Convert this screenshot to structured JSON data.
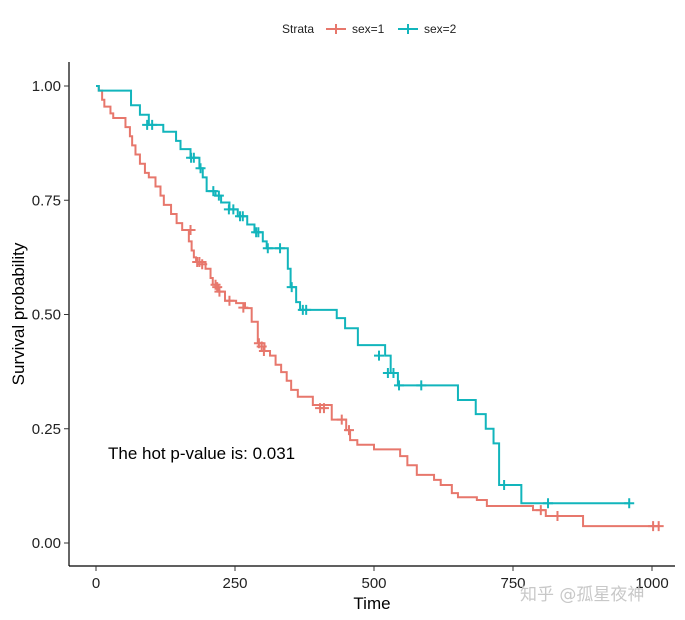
{
  "chart_data": {
    "type": "line",
    "subtype": "kaplan-meier step",
    "xlabel": "Time",
    "ylabel": "Survival probability",
    "xlim": [
      -50,
      1050
    ],
    "ylim": [
      -0.05,
      1.05
    ],
    "x_ticks": [
      "0",
      "250",
      "500",
      "750",
      "1000"
    ],
    "y_ticks": [
      "0.00",
      "0.25",
      "0.50",
      "0.75",
      "1.00"
    ],
    "grid": false,
    "legend": {
      "position": "top",
      "title": "Strata"
    },
    "annotation": "The hot p-value is: 0.031",
    "series": [
      {
        "name": "sex=1",
        "color": "#E7776C",
        "steps": [
          [
            0,
            1.0
          ],
          [
            5,
            0.99
          ],
          [
            11,
            0.97
          ],
          [
            15,
            0.955
          ],
          [
            26,
            0.94
          ],
          [
            31,
            0.93
          ],
          [
            53,
            0.91
          ],
          [
            61,
            0.89
          ],
          [
            65,
            0.87
          ],
          [
            71,
            0.85
          ],
          [
            79,
            0.83
          ],
          [
            88,
            0.81
          ],
          [
            95,
            0.8
          ],
          [
            107,
            0.78
          ],
          [
            116,
            0.76
          ],
          [
            122,
            0.74
          ],
          [
            135,
            0.72
          ],
          [
            145,
            0.7
          ],
          [
            155,
            0.685
          ],
          [
            167,
            0.66
          ],
          [
            172,
            0.64
          ],
          [
            176,
            0.625
          ],
          [
            180,
            0.615
          ],
          [
            197,
            0.6
          ],
          [
            206,
            0.58
          ],
          [
            210,
            0.565
          ],
          [
            220,
            0.55
          ],
          [
            232,
            0.53
          ],
          [
            252,
            0.525
          ],
          [
            268,
            0.514
          ],
          [
            280,
            0.484
          ],
          [
            291,
            0.437
          ],
          [
            303,
            0.42
          ],
          [
            313,
            0.41
          ],
          [
            323,
            0.39
          ],
          [
            333,
            0.374
          ],
          [
            343,
            0.355
          ],
          [
            351,
            0.335
          ],
          [
            363,
            0.32
          ],
          [
            390,
            0.302
          ],
          [
            424,
            0.27
          ],
          [
            450,
            0.247
          ],
          [
            457,
            0.225
          ],
          [
            470,
            0.215
          ],
          [
            500,
            0.205
          ],
          [
            547,
            0.19
          ],
          [
            560,
            0.17
          ],
          [
            577,
            0.149
          ],
          [
            608,
            0.138
          ],
          [
            620,
            0.127
          ],
          [
            640,
            0.109
          ],
          [
            651,
            0.1
          ],
          [
            685,
            0.094
          ],
          [
            703,
            0.081
          ],
          [
            786,
            0.072
          ],
          [
            809,
            0.059
          ],
          [
            876,
            0.037
          ],
          [
            1014,
            0.037
          ]
        ],
        "censored": [
          [
            170,
            0.685
          ],
          [
            182,
            0.615
          ],
          [
            186,
            0.615
          ],
          [
            191,
            0.61
          ],
          [
            215,
            0.565
          ],
          [
            218,
            0.56
          ],
          [
            222,
            0.55
          ],
          [
            240,
            0.53
          ],
          [
            265,
            0.515
          ],
          [
            293,
            0.437
          ],
          [
            298,
            0.43
          ],
          [
            302,
            0.42
          ],
          [
            403,
            0.295
          ],
          [
            410,
            0.295
          ],
          [
            442,
            0.27
          ],
          [
            455,
            0.247
          ],
          [
            800,
            0.072
          ],
          [
            830,
            0.059
          ],
          [
            1002,
            0.037
          ],
          [
            1012,
            0.037
          ]
        ]
      },
      {
        "name": "sex=2",
        "color": "#12B5BC",
        "steps": [
          [
            0,
            1.0
          ],
          [
            5,
            0.99
          ],
          [
            63,
            0.958
          ],
          [
            79,
            0.937
          ],
          [
            95,
            0.915
          ],
          [
            121,
            0.9
          ],
          [
            144,
            0.88
          ],
          [
            152,
            0.862
          ],
          [
            170,
            0.843
          ],
          [
            186,
            0.82
          ],
          [
            192,
            0.8
          ],
          [
            199,
            0.77
          ],
          [
            215,
            0.76
          ],
          [
            225,
            0.745
          ],
          [
            240,
            0.73
          ],
          [
            255,
            0.715
          ],
          [
            272,
            0.697
          ],
          [
            285,
            0.68
          ],
          [
            300,
            0.66
          ],
          [
            307,
            0.645
          ],
          [
            340,
            0.645
          ],
          [
            345,
            0.6
          ],
          [
            350,
            0.56
          ],
          [
            360,
            0.527
          ],
          [
            367,
            0.51
          ],
          [
            424,
            0.51
          ],
          [
            433,
            0.492
          ],
          [
            448,
            0.47
          ],
          [
            471,
            0.433
          ],
          [
            520,
            0.41
          ],
          [
            530,
            0.372
          ],
          [
            543,
            0.345
          ],
          [
            638,
            0.345
          ],
          [
            651,
            0.313
          ],
          [
            683,
            0.282
          ],
          [
            701,
            0.25
          ],
          [
            715,
            0.218
          ],
          [
            725,
            0.127
          ],
          [
            759,
            0.127
          ],
          [
            765,
            0.087
          ],
          [
            959,
            0.087
          ]
        ],
        "censored": [
          [
            92,
            0.915
          ],
          [
            101,
            0.915
          ],
          [
            171,
            0.843
          ],
          [
            176,
            0.843
          ],
          [
            188,
            0.82
          ],
          [
            211,
            0.77
          ],
          [
            221,
            0.76
          ],
          [
            239,
            0.73
          ],
          [
            247,
            0.73
          ],
          [
            259,
            0.715
          ],
          [
            264,
            0.715
          ],
          [
            288,
            0.68
          ],
          [
            292,
            0.68
          ],
          [
            309,
            0.645
          ],
          [
            331,
            0.645
          ],
          [
            352,
            0.56
          ],
          [
            372,
            0.51
          ],
          [
            378,
            0.51
          ],
          [
            509,
            0.41
          ],
          [
            525,
            0.372
          ],
          [
            535,
            0.372
          ],
          [
            545,
            0.345
          ],
          [
            585,
            0.345
          ],
          [
            734,
            0.127
          ],
          [
            813,
            0.087
          ],
          [
            959,
            0.087
          ]
        ]
      }
    ]
  },
  "watermark": "知乎 @孤星夜神"
}
